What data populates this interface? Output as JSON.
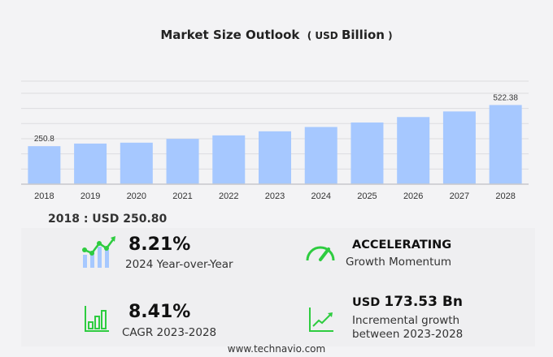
{
  "title": {
    "main": "Market Size Outlook",
    "unit_prefix": "USD",
    "unit": "Billion"
  },
  "chart_data": {
    "type": "bar",
    "categories": [
      "2018",
      "2019",
      "2020",
      "2021",
      "2022",
      "2023",
      "2024",
      "2025",
      "2026",
      "2027",
      "2028"
    ],
    "values": [
      250.8,
      268,
      274,
      299,
      322,
      348.85,
      377.5,
      407,
      443,
      480,
      522.38
    ],
    "data_labels": {
      "0": "250.8",
      "10": "522.38"
    },
    "ylim": [
      0,
      680
    ],
    "grid": true,
    "bar_color": "#a6c8ff"
  },
  "highlight": "2018 : USD  250.80",
  "stats": [
    {
      "value": "8.21%",
      "label": "2024 Year-over-Year",
      "icon": "growth-chart-icon"
    },
    {
      "value": "ACCELERATING",
      "label": "Growth Momentum",
      "icon": "speedometer-icon"
    },
    {
      "value": "8.41%",
      "label": "CAGR 2023-2028",
      "icon": "bar-chart-icon"
    },
    {
      "value_prefix": "USD",
      "value": "173.53 Bn",
      "label": "Incremental growth",
      "label2": "between 2023-2028",
      "icon": "trend-line-icon"
    }
  ],
  "colors": {
    "accent_green": "#2ecc40",
    "bar": "#a6c8ff"
  },
  "footer": "www.technavio.com"
}
